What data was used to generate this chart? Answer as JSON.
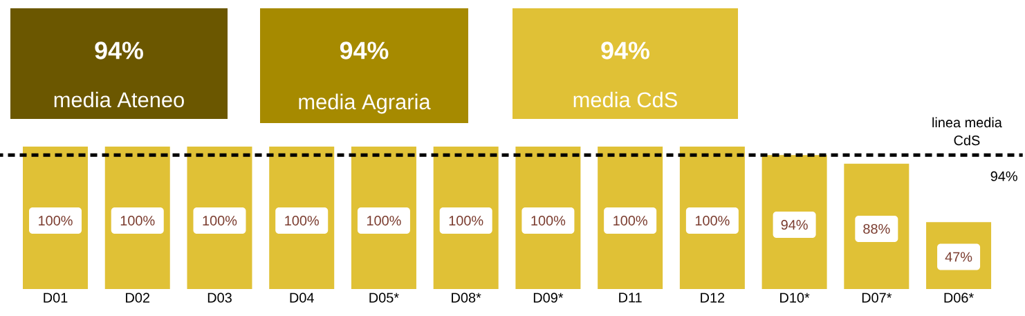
{
  "chart_data": {
    "type": "bar",
    "categories": [
      "D01",
      "D02",
      "D03",
      "D04",
      "D05*",
      "D08*",
      "D09*",
      "D11",
      "D12",
      "D10*",
      "D07*",
      "D06*"
    ],
    "values": [
      100,
      100,
      100,
      100,
      100,
      100,
      100,
      100,
      100,
      94,
      88,
      47
    ],
    "color": "#e0c136",
    "value_labels": [
      "100%",
      "100%",
      "100%",
      "100%",
      "100%",
      "100%",
      "100%",
      "100%",
      "100%",
      "94%",
      "88%",
      "47%"
    ],
    "ref_lines": [
      {
        "axis": "y",
        "value": 94,
        "label": "linea media CdS",
        "line_style": "dashed",
        "color": "#000000"
      }
    ],
    "annotations": [
      "94%",
      "media Ateneo",
      "94%",
      "media Agraria",
      "94%",
      "media CdS",
      {
        "text": "94%",
        "y": 94
      }
    ]
  }
}
